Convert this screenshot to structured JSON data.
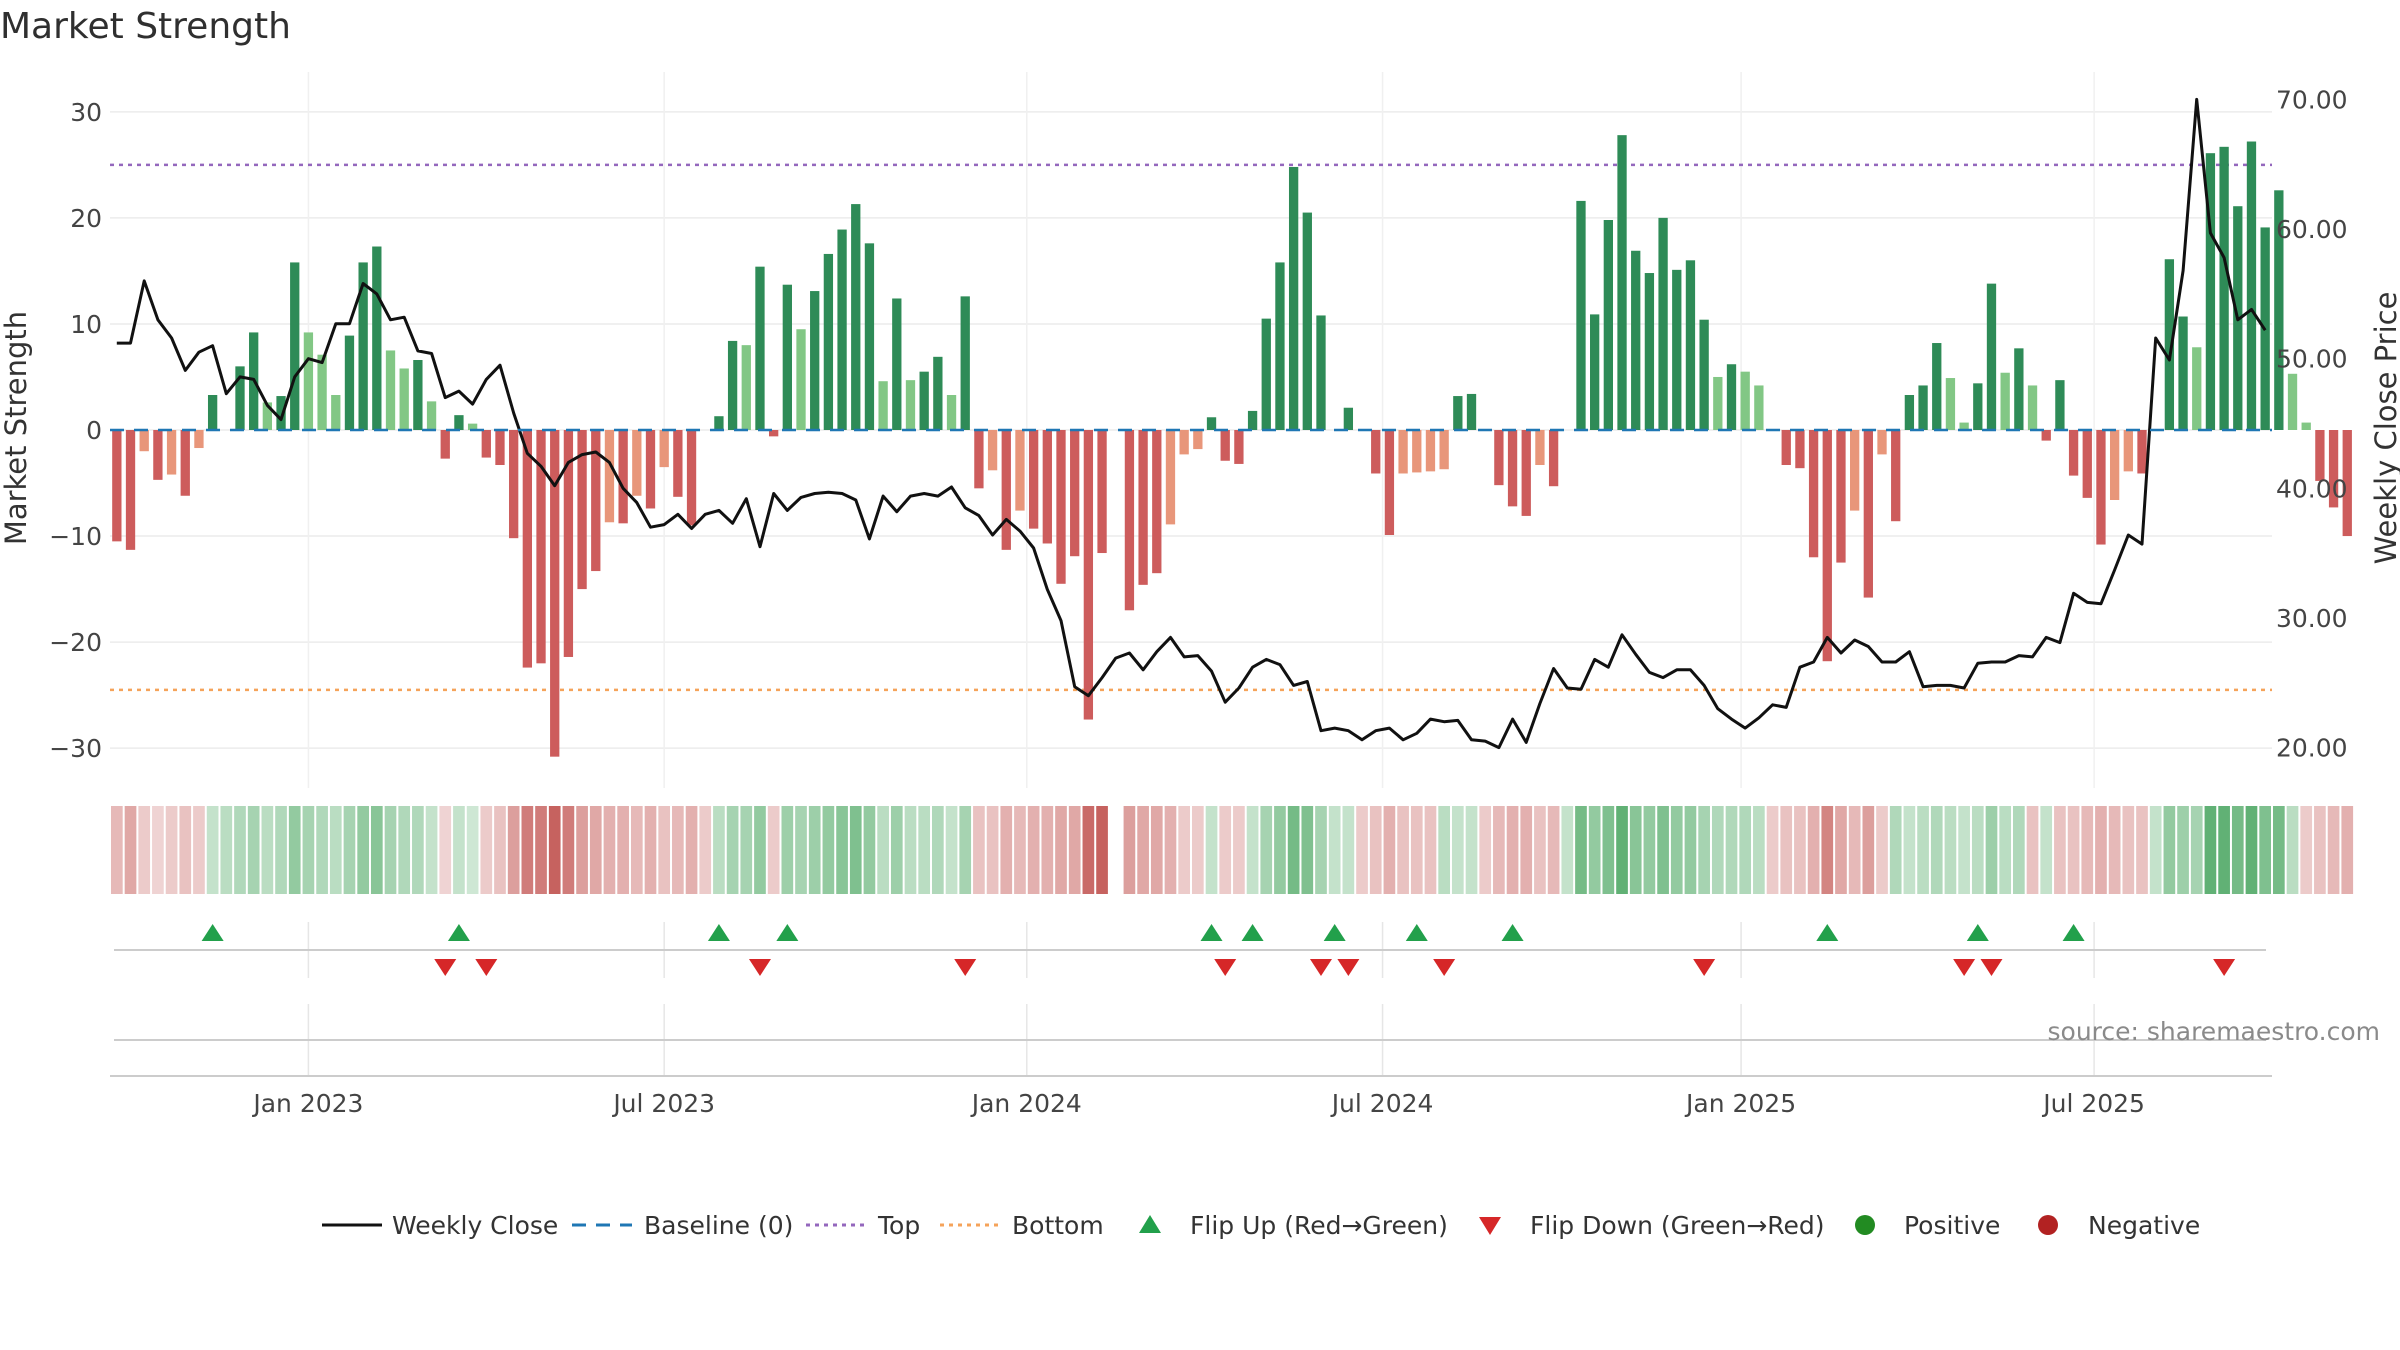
{
  "page": {
    "title": "Market Strength"
  },
  "chart_data": {
    "type": "bar",
    "title": "Market Strength",
    "ylabel": "Market Strength",
    "y2label": "Weekly Close Price",
    "ylim": [
      -33,
      33
    ],
    "y2lim": [
      17.5,
      71.5
    ],
    "yticks": [
      -30,
      -20,
      -10,
      0,
      10,
      20,
      30
    ],
    "yticklabels": [
      "−30",
      "−20",
      "−10",
      "0",
      "10",
      "20",
      "30"
    ],
    "y2ticks": [
      20,
      30,
      40,
      50,
      60,
      70
    ],
    "y2ticklabels": [
      "20.00",
      "30.00",
      "40.00",
      "50.00",
      "60.00",
      "70.00"
    ],
    "x_start": "2022-09-26",
    "x_range_weeks": [
      -0.5,
      157.5
    ],
    "xticks": [
      {
        "label": "Jan 2023",
        "week": 14
      },
      {
        "label": "Jul 2023",
        "week": 40
      },
      {
        "label": "Jan 2024",
        "week": 66.5
      },
      {
        "label": "Jul 2024",
        "week": 92.5
      },
      {
        "label": "Jan 2025",
        "week": 118.7
      },
      {
        "label": "Jul 2025",
        "week": 144.5
      }
    ],
    "top_level": 25,
    "bottom_level": -24.5,
    "baseline_level": 0,
    "colors": {
      "strong_pos": "#2e8b57",
      "weak_pos": "#82c785",
      "strong_neg": "#cd5c5c",
      "weak_neg": "#e8967a",
      "weekly_close": "#111111",
      "baseline": "#1f77b4",
      "top": "#9467bd",
      "bottom": "#f5a35a",
      "flip_up": "#22a04b",
      "flip_down": "#d62728",
      "positive": "#228b22",
      "negative": "#b22222"
    },
    "strength": [
      -10.5,
      -11.3,
      -2,
      -4.7,
      -4.2,
      -6.2,
      -1.7,
      3.3,
      0,
      6,
      9.2,
      2.6,
      3.2,
      15.8,
      9.2,
      7.1,
      3.3,
      8.9,
      15.8,
      17.3,
      7.5,
      5.8,
      6.6,
      2.7,
      -2.7,
      1.4,
      0.6,
      -2.6,
      -3.3,
      -10.2,
      -22.4,
      -22,
      -30.8,
      -21.4,
      -15,
      -13.3,
      -8.7,
      -8.8,
      -6.2,
      -7.4,
      -3.5,
      -6.3,
      -9,
      0,
      1.3,
      8.4,
      8,
      15.4,
      -0.6,
      13.7,
      9.5,
      13.1,
      16.6,
      18.9,
      21.3,
      17.6,
      4.6,
      12.4,
      4.7,
      5.5,
      6.9,
      3.3,
      12.6,
      -5.5,
      -3.8,
      -11.3,
      -7.6,
      -9.3,
      -10.7,
      -14.5,
      -11.9,
      -27.3,
      -11.6,
      0,
      -17,
      -14.6,
      -13.5,
      -8.9,
      -2.3,
      -1.8,
      1.2,
      -2.9,
      -3.2,
      1.8,
      10.5,
      15.8,
      24.8,
      20.5,
      10.8,
      0,
      2.1,
      0,
      -4.1,
      -9.9,
      -4.1,
      -4,
      -3.9,
      -3.7,
      3.2,
      3.4,
      0,
      -5.2,
      -7.2,
      -8.1,
      -3.3,
      -5.3,
      0,
      21.6,
      10.9,
      19.8,
      27.8,
      16.9,
      14.8,
      20,
      15.1,
      16,
      10.4,
      5,
      6.2,
      5.5,
      4.2,
      0,
      -3.3,
      -3.6,
      -12,
      -21.8,
      -12.5,
      -7.6,
      -15.8,
      -2.3,
      -8.6,
      3.3,
      4.2,
      8.2,
      4.9,
      0.7,
      4.4,
      13.8,
      5.4,
      7.7,
      4.2,
      -1,
      4.7,
      -4.3,
      -6.4,
      -10.8,
      -6.6,
      -3.9,
      -4.1,
      0,
      16.1,
      10.7,
      7.8,
      26.1,
      26.7,
      21.1,
      27.2,
      19.1,
      22.6,
      5.3,
      0.7,
      -4.8,
      -7.3,
      -10
    ],
    "close": [
      51.2,
      51.2,
      56,
      53,
      51.6,
      49.1,
      50.5,
      51,
      47.3,
      48.6,
      48.4,
      46.4,
      45.3,
      48.6,
      50,
      49.7,
      52.7,
      52.7,
      55.8,
      55,
      53,
      53.2,
      50.6,
      50.4,
      47,
      47.5,
      46.5,
      48.4,
      49.5,
      45.8,
      42.7,
      41.7,
      40.2,
      42,
      42.6,
      42.8,
      42,
      40,
      38.9,
      37,
      37.2,
      38,
      36.9,
      38,
      38.3,
      37.3,
      39.2,
      35.5,
      39.6,
      38.3,
      39.3,
      39.6,
      39.7,
      39.6,
      39.1,
      36.1,
      39.4,
      38.2,
      39.4,
      39.6,
      39.4,
      40.1,
      38.5,
      37.9,
      36.4,
      37.6,
      36.7,
      35.4,
      32.2,
      29.8,
      24.7,
      24,
      25.4,
      26.9,
      27.3,
      26,
      27.4,
      28.5,
      27,
      27.1,
      25.9,
      23.5,
      24.6,
      26.2,
      26.8,
      26.4,
      24.8,
      25.1,
      21.3,
      21.5,
      21.3,
      20.6,
      21.3,
      21.5,
      20.6,
      21.1,
      22.2,
      22,
      22.1,
      20.6,
      20.5,
      20,
      22.2,
      20.4,
      23.4,
      26.1,
      24.6,
      24.5,
      26.8,
      26.2,
      28.7,
      27.2,
      25.8,
      25.4,
      26,
      26,
      24.8,
      23,
      22.2,
      21.5,
      22.3,
      23.3,
      23.1,
      26.2,
      26.6,
      28.5,
      27.3,
      28.3,
      27.8,
      26.6,
      26.6,
      27.4,
      24.7,
      24.8,
      24.8,
      24.6,
      26.5,
      26.6,
      26.6,
      27.1,
      27,
      28.5,
      28.1,
      31.9,
      31.2,
      31.1,
      33.7,
      36.4,
      35.7,
      51.6,
      49.9,
      56.8,
      70,
      59.7,
      57.8,
      53,
      53.8,
      52.2
    ],
    "heat_intensity": [
      0.4,
      0.5,
      0.3,
      0.25,
      0.3,
      0.35,
      0.3,
      0.3,
      0.35,
      0.4,
      0.45,
      0.35,
      0.4,
      0.55,
      0.45,
      0.4,
      0.35,
      0.45,
      0.55,
      0.6,
      0.45,
      0.4,
      0.4,
      0.3,
      0.25,
      0.3,
      0.25,
      0.3,
      0.35,
      0.55,
      0.75,
      0.75,
      0.9,
      0.75,
      0.55,
      0.5,
      0.45,
      0.45,
      0.4,
      0.45,
      0.35,
      0.4,
      0.45,
      0.3,
      0.35,
      0.45,
      0.45,
      0.55,
      0.3,
      0.5,
      0.45,
      0.5,
      0.55,
      0.6,
      0.65,
      0.55,
      0.35,
      0.5,
      0.35,
      0.35,
      0.4,
      0.3,
      0.45,
      0.35,
      0.35,
      0.45,
      0.4,
      0.45,
      0.45,
      0.5,
      0.5,
      0.85,
      0.9,
      0,
      0.55,
      0.5,
      0.5,
      0.45,
      0.3,
      0.3,
      0.3,
      0.3,
      0.3,
      0.3,
      0.45,
      0.55,
      0.7,
      0.65,
      0.45,
      0.3,
      0.3,
      0.3,
      0.35,
      0.45,
      0.35,
      0.35,
      0.35,
      0.35,
      0.3,
      0.3,
      0.3,
      0.4,
      0.45,
      0.45,
      0.35,
      0.4,
      0.3,
      0.7,
      0.55,
      0.65,
      0.8,
      0.6,
      0.55,
      0.65,
      0.55,
      0.55,
      0.45,
      0.4,
      0.4,
      0.4,
      0.35,
      0.3,
      0.35,
      0.35,
      0.45,
      0.7,
      0.5,
      0.4,
      0.55,
      0.3,
      0.4,
      0.3,
      0.35,
      0.4,
      0.35,
      0.3,
      0.35,
      0.5,
      0.35,
      0.4,
      0.35,
      0.3,
      0.35,
      0.35,
      0.4,
      0.45,
      0.4,
      0.35,
      0.35,
      0.3,
      0.55,
      0.5,
      0.45,
      0.8,
      0.8,
      0.7,
      0.8,
      0.65,
      0.7,
      0.35,
      0.3,
      0.35,
      0.4,
      0.45
    ],
    "heat_sign": [
      -1,
      -1,
      -1,
      -1,
      -1,
      -1,
      -1,
      1,
      1,
      1,
      1,
      1,
      1,
      1,
      1,
      1,
      1,
      1,
      1,
      1,
      1,
      1,
      1,
      1,
      -1,
      1,
      1,
      -1,
      -1,
      -1,
      -1,
      -1,
      -1,
      -1,
      -1,
      -1,
      -1,
      -1,
      -1,
      -1,
      -1,
      -1,
      -1,
      -1,
      1,
      1,
      1,
      1,
      -1,
      1,
      1,
      1,
      1,
      1,
      1,
      1,
      1,
      1,
      1,
      1,
      1,
      1,
      1,
      -1,
      -1,
      -1,
      -1,
      -1,
      -1,
      -1,
      -1,
      -1,
      -1,
      0,
      -1,
      -1,
      -1,
      -1,
      -1,
      -1,
      1,
      -1,
      -1,
      1,
      1,
      1,
      1,
      1,
      1,
      1,
      1,
      -1,
      -1,
      -1,
      -1,
      -1,
      -1,
      1,
      1,
      1,
      -1,
      -1,
      -1,
      -1,
      -1,
      -1,
      1,
      1,
      1,
      1,
      1,
      1,
      1,
      1,
      1,
      1,
      1,
      1,
      1,
      1,
      1,
      -1,
      -1,
      -1,
      -1,
      -1,
      -1,
      -1,
      -1,
      -1,
      1,
      1,
      1,
      1,
      1,
      1,
      1,
      1,
      1,
      1,
      -1,
      1,
      -1,
      -1,
      -1,
      -1,
      -1,
      -1,
      -1,
      1,
      1,
      1,
      1,
      1,
      1,
      1,
      1,
      1,
      1,
      1,
      -1,
      -1,
      -1,
      -1
    ],
    "flip_up_weeks": [
      7,
      25,
      44,
      49,
      80,
      83,
      89,
      95,
      102,
      125,
      136,
      143
    ],
    "flip_down_weeks": [
      24,
      27,
      47,
      62,
      81,
      88,
      90,
      97,
      116,
      135,
      137,
      154
    ],
    "source": "source: sharemaestro.com",
    "legend": [
      {
        "label": "Weekly Close",
        "kind": "line-solid",
        "color": "#111111"
      },
      {
        "label": "Baseline (0)",
        "kind": "line-dash",
        "color": "#1f77b4"
      },
      {
        "label": "Top",
        "kind": "line-dot",
        "color": "#9467bd"
      },
      {
        "label": "Bottom",
        "kind": "line-dot",
        "color": "#f5a35a"
      },
      {
        "label": "Flip Up (Red→Green)",
        "kind": "tri-up",
        "color": "#22a04b"
      },
      {
        "label": "Flip Down (Green→Red)",
        "kind": "tri-down",
        "color": "#d62728"
      },
      {
        "label": "Positive",
        "kind": "dot",
        "color": "#228b22"
      },
      {
        "label": "Negative",
        "kind": "dot",
        "color": "#b22222"
      }
    ]
  }
}
